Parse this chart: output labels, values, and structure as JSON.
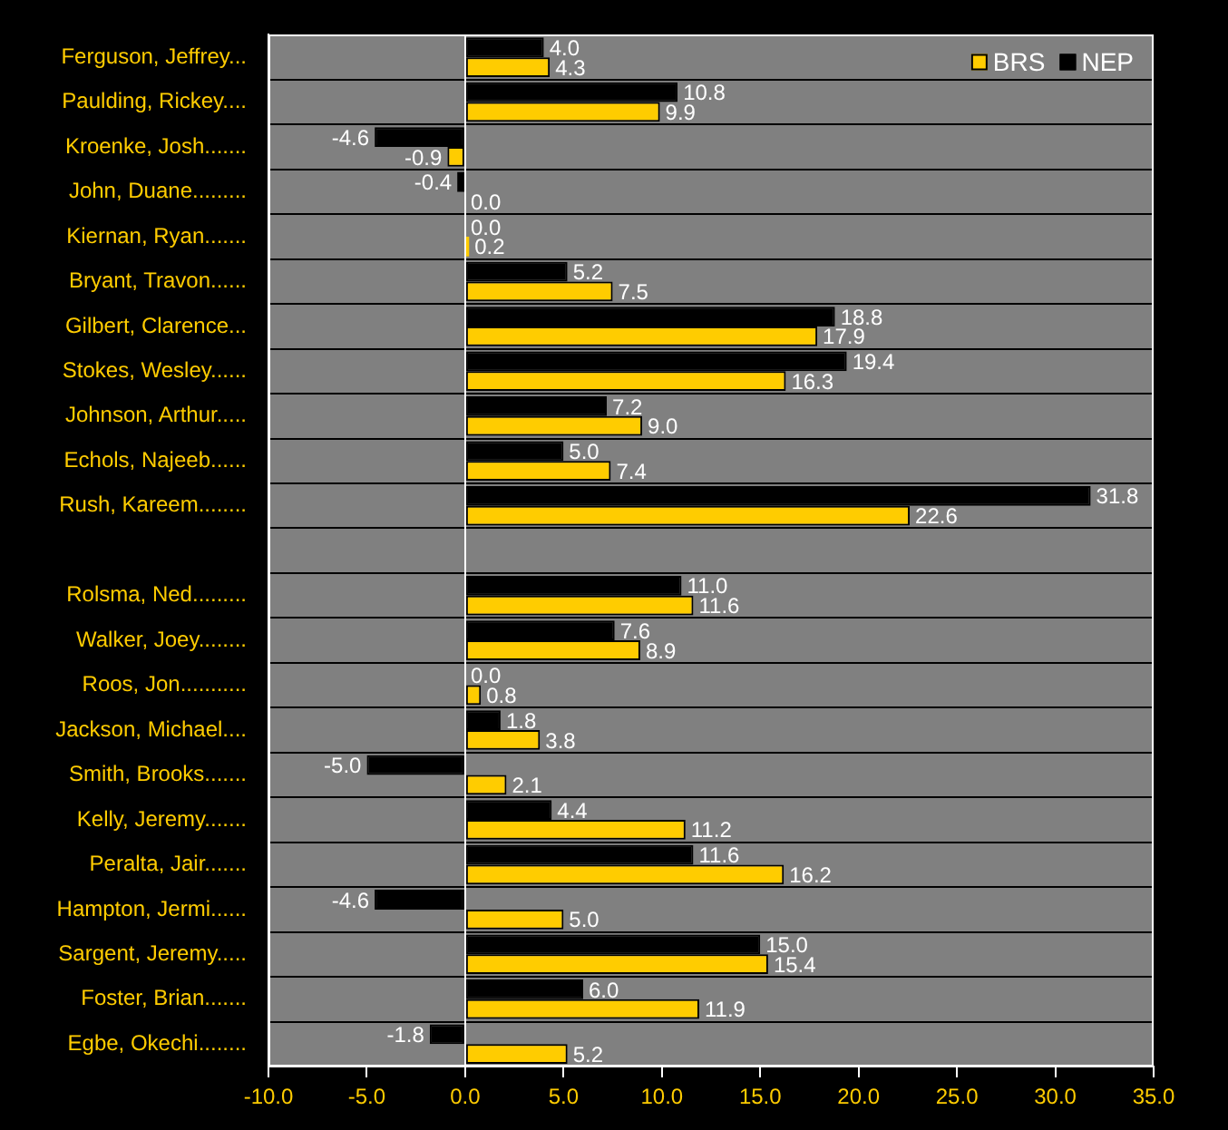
{
  "chart_data": {
    "type": "bar",
    "orientation": "horizontal",
    "categories": [
      "Ferguson, Jeffrey...",
      "Paulding, Rickey....",
      "Kroenke, Josh.......",
      "John, Duane.........",
      "Kiernan, Ryan.......",
      "Bryant, Travon......",
      "Gilbert, Clarence...",
      "Stokes, Wesley......",
      "Johnson, Arthur.....",
      "Echols, Najeeb......",
      "Rush, Kareem........",
      null,
      "Rolsma, Ned.........",
      "Walker, Joey........",
      "Roos, Jon...........",
      "Jackson, Michael....",
      "Smith, Brooks.......",
      "Kelly, Jeremy.......",
      "Peralta, Jair.......",
      "Hampton, Jermi......",
      "Sargent, Jeremy.....",
      "Foster, Brian.......",
      "Egbe, Okechi........"
    ],
    "series": [
      {
        "name": "NEP",
        "color": "#000000",
        "values": [
          4.0,
          10.8,
          -4.6,
          -0.4,
          0.0,
          5.2,
          18.8,
          19.4,
          7.2,
          5.0,
          31.8,
          null,
          11.0,
          7.6,
          0.0,
          1.8,
          -5.0,
          4.4,
          11.6,
          -4.6,
          15.0,
          6.0,
          -1.8
        ],
        "value_labels": [
          "4.0",
          "10.8",
          "-4.6",
          "-0.4",
          "0.0",
          "5.2",
          "18.8",
          "19.4",
          "7.2",
          "5.0",
          "31.8",
          null,
          "11.0",
          "7.6",
          "0.0",
          "1.8",
          "-5.0",
          "4.4",
          "11.6",
          "-4.6",
          "15.0",
          "6.0",
          "-1.8"
        ]
      },
      {
        "name": "BRS",
        "color": "#ffcc00",
        "values": [
          4.3,
          9.9,
          -0.9,
          0.0,
          0.2,
          7.5,
          17.9,
          16.3,
          9.0,
          7.4,
          22.6,
          null,
          11.6,
          8.9,
          0.8,
          3.8,
          2.1,
          11.2,
          16.2,
          5.0,
          15.4,
          11.9,
          5.2
        ],
        "value_labels": [
          "4.3",
          "9.9",
          "-0.9",
          "0.0",
          "0.2",
          "7.5",
          "17.9",
          "16.3",
          "9.0",
          "7.4",
          "22.6",
          null,
          "11.6",
          "8.9",
          "0.8",
          "3.8",
          "2.1",
          "11.2",
          "16.2",
          "5.0",
          "15.4",
          "11.9",
          "5.2"
        ]
      }
    ],
    "xlim": [
      -10,
      35
    ],
    "xticks": [
      {
        "value": -10,
        "label": "-10.0"
      },
      {
        "value": -5,
        "label": "-5.0"
      },
      {
        "value": 0,
        "label": "0.0"
      },
      {
        "value": 5,
        "label": "5.0"
      },
      {
        "value": 10,
        "label": "10.0"
      },
      {
        "value": 15,
        "label": "15.0"
      },
      {
        "value": 20,
        "label": "20.0"
      },
      {
        "value": 25,
        "label": "25.0"
      },
      {
        "value": 30,
        "label": "30.0"
      },
      {
        "value": 35,
        "label": "35.0"
      }
    ],
    "grid": "y",
    "legend": "top right"
  }
}
